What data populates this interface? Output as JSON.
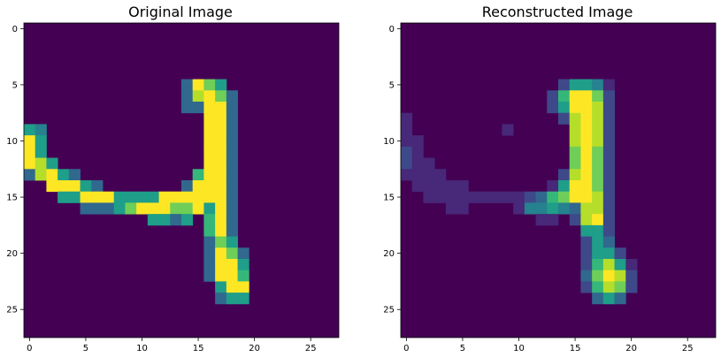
{
  "colors": {
    "background": "#440154",
    "colormap": [
      "#440154",
      "#482878",
      "#3e4989",
      "#31688e",
      "#26828e",
      "#1f9e89",
      "#35b779",
      "#6ece58",
      "#b5de2b",
      "#fde725"
    ]
  },
  "chart_data": [
    {
      "type": "heatmap",
      "title": "Original Image",
      "xlabel": "",
      "ylabel": "",
      "xlim": [
        -0.5,
        27.5
      ],
      "ylim": [
        27.5,
        -0.5
      ],
      "x_ticks": [
        0,
        5,
        10,
        15,
        20,
        25
      ],
      "y_ticks": [
        0,
        5,
        10,
        15,
        20,
        25
      ],
      "colormap": "viridis",
      "cells": [
        [
          5,
          14,
          0.3
        ],
        [
          5,
          15,
          1.0
        ],
        [
          5,
          16,
          0.8
        ],
        [
          5,
          17,
          0.5
        ],
        [
          6,
          14,
          0.3
        ],
        [
          6,
          15,
          0.9
        ],
        [
          6,
          16,
          1.0
        ],
        [
          6,
          17,
          0.8
        ],
        [
          6,
          18,
          0.3
        ],
        [
          7,
          14,
          0.3
        ],
        [
          7,
          15,
          0.3
        ],
        [
          7,
          16,
          1.0
        ],
        [
          7,
          17,
          1.0
        ],
        [
          7,
          18,
          0.3
        ],
        [
          8,
          16,
          1.0
        ],
        [
          8,
          17,
          1.0
        ],
        [
          8,
          18,
          0.3
        ],
        [
          9,
          0,
          0.6
        ],
        [
          9,
          1,
          0.4
        ],
        [
          9,
          16,
          1.0
        ],
        [
          9,
          17,
          1.0
        ],
        [
          9,
          18,
          0.3
        ],
        [
          10,
          0,
          1.0
        ],
        [
          10,
          1,
          0.5
        ],
        [
          10,
          16,
          1.0
        ],
        [
          10,
          17,
          1.0
        ],
        [
          10,
          18,
          0.3
        ],
        [
          11,
          0,
          1.0
        ],
        [
          11,
          1,
          0.5
        ],
        [
          11,
          16,
          1.0
        ],
        [
          11,
          17,
          1.0
        ],
        [
          11,
          18,
          0.3
        ],
        [
          12,
          0,
          1.0
        ],
        [
          12,
          1,
          0.9
        ],
        [
          12,
          2,
          0.5
        ],
        [
          12,
          16,
          1.0
        ],
        [
          12,
          17,
          1.0
        ],
        [
          12,
          18,
          0.3
        ],
        [
          13,
          0,
          0.3
        ],
        [
          13,
          1,
          0.9
        ],
        [
          13,
          2,
          1.0
        ],
        [
          13,
          3,
          0.5
        ],
        [
          13,
          4,
          0.3
        ],
        [
          13,
          15,
          0.7
        ],
        [
          13,
          16,
          1.0
        ],
        [
          13,
          17,
          1.0
        ],
        [
          13,
          18,
          0.3
        ],
        [
          14,
          2,
          1.0
        ],
        [
          14,
          3,
          1.0
        ],
        [
          14,
          4,
          1.0
        ],
        [
          14,
          5,
          0.5
        ],
        [
          14,
          6,
          0.3
        ],
        [
          14,
          14,
          0.3
        ],
        [
          14,
          15,
          1.0
        ],
        [
          14,
          16,
          1.0
        ],
        [
          14,
          17,
          1.0
        ],
        [
          14,
          18,
          0.3
        ],
        [
          15,
          3,
          0.5
        ],
        [
          15,
          4,
          0.5
        ],
        [
          15,
          5,
          1.0
        ],
        [
          15,
          6,
          1.0
        ],
        [
          15,
          7,
          1.0
        ],
        [
          15,
          8,
          0.5
        ],
        [
          15,
          9,
          0.5
        ],
        [
          15,
          10,
          0.5
        ],
        [
          15,
          11,
          0.5
        ],
        [
          15,
          12,
          1.0
        ],
        [
          15,
          13,
          1.0
        ],
        [
          15,
          14,
          1.0
        ],
        [
          15,
          15,
          1.0
        ],
        [
          15,
          16,
          1.0
        ],
        [
          15,
          17,
          1.0
        ],
        [
          15,
          18,
          0.3
        ],
        [
          16,
          5,
          0.3
        ],
        [
          16,
          6,
          0.3
        ],
        [
          16,
          7,
          0.3
        ],
        [
          16,
          8,
          0.5
        ],
        [
          16,
          9,
          0.8
        ],
        [
          16,
          10,
          1.0
        ],
        [
          16,
          11,
          1.0
        ],
        [
          16,
          12,
          1.0
        ],
        [
          16,
          13,
          0.8
        ],
        [
          16,
          14,
          0.8
        ],
        [
          16,
          15,
          1.0
        ],
        [
          16,
          16,
          0.5
        ],
        [
          16,
          17,
          1.0
        ],
        [
          16,
          18,
          0.3
        ],
        [
          17,
          11,
          0.5
        ],
        [
          17,
          12,
          0.5
        ],
        [
          17,
          13,
          0.3
        ],
        [
          17,
          14,
          0.5
        ],
        [
          17,
          16,
          0.7
        ],
        [
          17,
          17,
          1.0
        ],
        [
          17,
          18,
          0.3
        ],
        [
          18,
          16,
          0.7
        ],
        [
          18,
          17,
          1.0
        ],
        [
          18,
          18,
          0.3
        ],
        [
          19,
          16,
          0.3
        ],
        [
          19,
          17,
          0.8
        ],
        [
          19,
          18,
          0.5
        ],
        [
          20,
          16,
          0.3
        ],
        [
          20,
          17,
          1.0
        ],
        [
          20,
          18,
          0.8
        ],
        [
          20,
          19,
          0.3
        ],
        [
          21,
          16,
          0.3
        ],
        [
          21,
          17,
          1.0
        ],
        [
          21,
          18,
          1.0
        ],
        [
          21,
          19,
          0.6
        ],
        [
          22,
          16,
          0.3
        ],
        [
          22,
          17,
          1.0
        ],
        [
          22,
          18,
          1.0
        ],
        [
          22,
          19,
          0.7
        ],
        [
          23,
          17,
          0.6
        ],
        [
          23,
          18,
          1.0
        ],
        [
          23,
          19,
          1.0
        ],
        [
          24,
          17,
          0.3
        ],
        [
          24,
          18,
          0.5
        ],
        [
          24,
          19,
          0.5
        ]
      ]
    },
    {
      "type": "heatmap",
      "title": "Reconstructed Image",
      "xlabel": "",
      "ylabel": "",
      "xlim": [
        -0.5,
        27.5
      ],
      "ylim": [
        27.5,
        -0.5
      ],
      "x_ticks": [
        0,
        5,
        10,
        15,
        20,
        25
      ],
      "y_ticks": [
        0,
        5,
        10,
        15,
        20,
        25
      ],
      "colormap": "viridis",
      "cells": [
        [
          5,
          14,
          0.2
        ],
        [
          5,
          15,
          0.6
        ],
        [
          5,
          16,
          0.6
        ],
        [
          5,
          17,
          0.4
        ],
        [
          5,
          18,
          0.15
        ],
        [
          6,
          13,
          0.25
        ],
        [
          6,
          14,
          0.7
        ],
        [
          6,
          15,
          1.0
        ],
        [
          6,
          16,
          1.0
        ],
        [
          6,
          17,
          0.8
        ],
        [
          6,
          18,
          0.2
        ],
        [
          7,
          13,
          0.2
        ],
        [
          7,
          14,
          0.5
        ],
        [
          7,
          15,
          1.0
        ],
        [
          7,
          16,
          1.0
        ],
        [
          7,
          17,
          0.9
        ],
        [
          7,
          18,
          0.2
        ],
        [
          8,
          0,
          0.12
        ],
        [
          8,
          14,
          0.25
        ],
        [
          8,
          15,
          0.9
        ],
        [
          8,
          16,
          1.0
        ],
        [
          8,
          17,
          0.9
        ],
        [
          8,
          18,
          0.2
        ],
        [
          9,
          0,
          0.12
        ],
        [
          9,
          9,
          0.1
        ],
        [
          9,
          15,
          0.85
        ],
        [
          9,
          16,
          1.0
        ],
        [
          9,
          17,
          0.85
        ],
        [
          9,
          18,
          0.2
        ],
        [
          10,
          0,
          0.15
        ],
        [
          10,
          1,
          0.1
        ],
        [
          10,
          15,
          0.85
        ],
        [
          10,
          16,
          1.0
        ],
        [
          10,
          17,
          0.85
        ],
        [
          10,
          18,
          0.2
        ],
        [
          11,
          0,
          0.2
        ],
        [
          11,
          1,
          0.1
        ],
        [
          11,
          15,
          0.8
        ],
        [
          11,
          16,
          1.0
        ],
        [
          11,
          17,
          0.8
        ],
        [
          11,
          18,
          0.2
        ],
        [
          12,
          0,
          0.25
        ],
        [
          12,
          1,
          0.15
        ],
        [
          12,
          2,
          0.12
        ],
        [
          12,
          15,
          0.75
        ],
        [
          12,
          16,
          1.0
        ],
        [
          12,
          17,
          0.8
        ],
        [
          12,
          18,
          0.2
        ],
        [
          13,
          0,
          0.12
        ],
        [
          13,
          1,
          0.12
        ],
        [
          13,
          2,
          0.1
        ],
        [
          13,
          3,
          0.1
        ],
        [
          13,
          14,
          0.2
        ],
        [
          13,
          15,
          0.85
        ],
        [
          13,
          16,
          1.0
        ],
        [
          13,
          17,
          0.8
        ],
        [
          13,
          18,
          0.2
        ],
        [
          14,
          1,
          0.1
        ],
        [
          14,
          2,
          0.12
        ],
        [
          14,
          3,
          0.12
        ],
        [
          14,
          4,
          0.1
        ],
        [
          14,
          5,
          0.1
        ],
        [
          14,
          13,
          0.15
        ],
        [
          14,
          14,
          0.6
        ],
        [
          14,
          15,
          1.0
        ],
        [
          14,
          16,
          1.0
        ],
        [
          14,
          17,
          0.8
        ],
        [
          14,
          18,
          0.2
        ],
        [
          15,
          2,
          0.1
        ],
        [
          15,
          3,
          0.12
        ],
        [
          15,
          4,
          0.12
        ],
        [
          15,
          5,
          0.12
        ],
        [
          15,
          6,
          0.1
        ],
        [
          15,
          7,
          0.1
        ],
        [
          15,
          8,
          0.1
        ],
        [
          15,
          9,
          0.12
        ],
        [
          15,
          10,
          0.15
        ],
        [
          15,
          11,
          0.2
        ],
        [
          15,
          12,
          0.3
        ],
        [
          15,
          13,
          0.65
        ],
        [
          15,
          14,
          0.8
        ],
        [
          15,
          15,
          1.0
        ],
        [
          15,
          16,
          1.0
        ],
        [
          15,
          17,
          0.85
        ],
        [
          15,
          18,
          0.2
        ],
        [
          16,
          4,
          0.1
        ],
        [
          16,
          5,
          0.1
        ],
        [
          16,
          10,
          0.12
        ],
        [
          16,
          11,
          0.4
        ],
        [
          16,
          12,
          0.45
        ],
        [
          16,
          13,
          0.5
        ],
        [
          16,
          14,
          0.4
        ],
        [
          16,
          15,
          0.3
        ],
        [
          16,
          16,
          0.9
        ],
        [
          16,
          17,
          0.9
        ],
        [
          16,
          18,
          0.2
        ],
        [
          17,
          12,
          0.1
        ],
        [
          17,
          13,
          0.15
        ],
        [
          17,
          15,
          0.2
        ],
        [
          17,
          16,
          0.9
        ],
        [
          17,
          17,
          1.0
        ],
        [
          17,
          18,
          0.2
        ],
        [
          18,
          16,
          0.5
        ],
        [
          18,
          17,
          0.6
        ],
        [
          18,
          18,
          0.2
        ],
        [
          19,
          16,
          0.25
        ],
        [
          19,
          17,
          0.6
        ],
        [
          19,
          18,
          0.3
        ],
        [
          20,
          16,
          0.2
        ],
        [
          20,
          17,
          0.55
        ],
        [
          20,
          18,
          0.6
        ],
        [
          20,
          19,
          0.2
        ],
        [
          21,
          16,
          0.25
        ],
        [
          21,
          17,
          0.7
        ],
        [
          21,
          18,
          0.9
        ],
        [
          21,
          19,
          0.6
        ],
        [
          21,
          20,
          0.15
        ],
        [
          22,
          16,
          0.3
        ],
        [
          22,
          17,
          0.8
        ],
        [
          22,
          18,
          1.0
        ],
        [
          22,
          19,
          0.9
        ],
        [
          22,
          20,
          0.2
        ],
        [
          23,
          16,
          0.2
        ],
        [
          23,
          17,
          0.7
        ],
        [
          23,
          18,
          0.9
        ],
        [
          23,
          19,
          0.8
        ],
        [
          23,
          20,
          0.2
        ],
        [
          24,
          17,
          0.3
        ],
        [
          24,
          18,
          0.5
        ],
        [
          24,
          19,
          0.3
        ]
      ]
    }
  ]
}
